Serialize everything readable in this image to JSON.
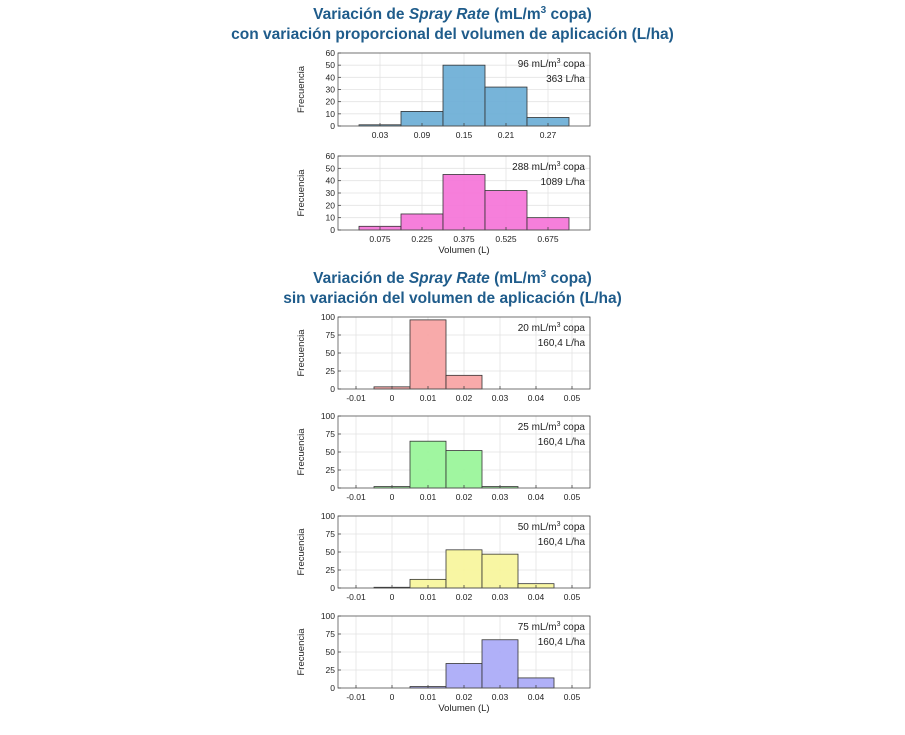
{
  "titles": {
    "top_line1_a": "Variación de ",
    "top_line1_b": "Spray Rate",
    "top_line1_c": " (mL/m",
    "top_line1_sup": "3",
    "top_line1_d": " copa)",
    "top_line2": "con variación proporcional del volumen de aplicación (L/ha)",
    "bottom_line1_a": "Variación de ",
    "bottom_line1_b": "Spray Rate",
    "bottom_line1_c": " (mL/m",
    "bottom_line1_sup": "3",
    "bottom_line1_d": " copa)",
    "bottom_line2": "sin variación del volumen de aplicación (L/ha)"
  },
  "chart_data": [
    {
      "type": "bar",
      "ylabel": "Frecuencia",
      "xlabel": "",
      "ylim": [
        0,
        60
      ],
      "yticks": [
        0,
        10,
        20,
        30,
        40,
        50,
        60
      ],
      "xlim": [
        -0.03,
        0.33
      ],
      "xticks": [
        "0.03",
        "0.09",
        "0.15",
        "0.21",
        "0.27"
      ],
      "xtick_values": [
        0.03,
        0.09,
        0.15,
        0.21,
        0.27
      ],
      "bin_edges": [
        0.0,
        0.06,
        0.12,
        0.18,
        0.24,
        0.3
      ],
      "values": [
        1,
        12,
        50,
        32,
        7
      ],
      "color": "#6baed6",
      "grid": true,
      "annotation": {
        "line1": "96 mL/m",
        "sup": "3",
        "line1_end": " copa",
        "line2": "363 L/ha"
      }
    },
    {
      "type": "bar",
      "ylabel": "Frecuencia",
      "xlabel": "Volumen (L)",
      "ylim": [
        0,
        60
      ],
      "yticks": [
        0,
        10,
        20,
        30,
        40,
        50,
        60
      ],
      "xlim": [
        -0.075,
        0.825
      ],
      "xticks": [
        "0.075",
        "0.225",
        "0.375",
        "0.525",
        "0.675"
      ],
      "xtick_values": [
        0.075,
        0.225,
        0.375,
        0.525,
        0.675
      ],
      "bin_edges": [
        0.0,
        0.15,
        0.3,
        0.45,
        0.6,
        0.75
      ],
      "values": [
        3,
        13,
        45,
        32,
        10
      ],
      "color": "#f574d8",
      "grid": true,
      "annotation": {
        "line1": "288 mL/m",
        "sup": "3",
        "line1_end": " copa",
        "line2": "1089 L/ha"
      }
    },
    {
      "type": "bar",
      "ylabel": "Frecuencia",
      "xlabel": "",
      "ylim": [
        0,
        100
      ],
      "yticks": [
        0,
        25,
        50,
        75,
        100
      ],
      "xlim": [
        -0.015,
        0.055
      ],
      "xticks": [
        "-0.01",
        "0",
        "0.01",
        "0.02",
        "0.03",
        "0.04",
        "0.05"
      ],
      "xtick_values": [
        -0.01,
        0,
        0.01,
        0.02,
        0.03,
        0.04,
        0.05
      ],
      "bin_edges": [
        -0.005,
        0.005,
        0.015,
        0.025
      ],
      "values": [
        3,
        96,
        19
      ],
      "color": "#f7a3a3",
      "grid": true,
      "annotation": {
        "line1": "20 mL/m",
        "sup": "3",
        "line1_end": " copa",
        "line2": "160,4 L/ha"
      }
    },
    {
      "type": "bar",
      "ylabel": "Frecuencia",
      "xlabel": "",
      "ylim": [
        0,
        100
      ],
      "yticks": [
        0,
        25,
        50,
        75,
        100
      ],
      "xlim": [
        -0.015,
        0.055
      ],
      "xticks": [
        "-0.01",
        "0",
        "0.01",
        "0.02",
        "0.03",
        "0.04",
        "0.05"
      ],
      "xtick_values": [
        -0.01,
        0,
        0.01,
        0.02,
        0.03,
        0.04,
        0.05
      ],
      "bin_edges": [
        -0.005,
        0.005,
        0.015,
        0.025,
        0.035
      ],
      "values": [
        2,
        65,
        52,
        2
      ],
      "color": "#98f598",
      "grid": true,
      "annotation": {
        "line1": "25 mL/m",
        "sup": "3",
        "line1_end": " copa",
        "line2": "160,4 L/ha"
      }
    },
    {
      "type": "bar",
      "ylabel": "Frecuencia",
      "xlabel": "",
      "ylim": [
        0,
        100
      ],
      "yticks": [
        0,
        25,
        50,
        75,
        100
      ],
      "xlim": [
        -0.015,
        0.055
      ],
      "xticks": [
        "-0.01",
        "0",
        "0.01",
        "0.02",
        "0.03",
        "0.04",
        "0.05"
      ],
      "xtick_values": [
        -0.01,
        0,
        0.01,
        0.02,
        0.03,
        0.04,
        0.05
      ],
      "bin_edges": [
        -0.005,
        0.005,
        0.015,
        0.025,
        0.035,
        0.045
      ],
      "values": [
        1,
        12,
        53,
        47,
        6
      ],
      "color": "#f7f59b",
      "grid": true,
      "annotation": {
        "line1": "50 mL/m",
        "sup": "3",
        "line1_end": " copa",
        "line2": "160,4 L/ha"
      }
    },
    {
      "type": "bar",
      "ylabel": "Frecuencia",
      "xlabel": "Volumen (L)",
      "ylim": [
        0,
        100
      ],
      "yticks": [
        0,
        25,
        50,
        75,
        100
      ],
      "xlim": [
        -0.015,
        0.055
      ],
      "xticks": [
        "-0.01",
        "0",
        "0.01",
        "0.02",
        "0.03",
        "0.04",
        "0.05"
      ],
      "xtick_values": [
        -0.01,
        0,
        0.01,
        0.02,
        0.03,
        0.04,
        0.05
      ],
      "bin_edges": [
        0.005,
        0.015,
        0.025,
        0.035,
        0.045
      ],
      "values": [
        2,
        34,
        67,
        14
      ],
      "color": "#a9a9f7",
      "grid": true,
      "annotation": {
        "line1": "75 mL/m",
        "sup": "3",
        "line1_end": " copa",
        "line2": "160,4 L/ha"
      }
    }
  ]
}
